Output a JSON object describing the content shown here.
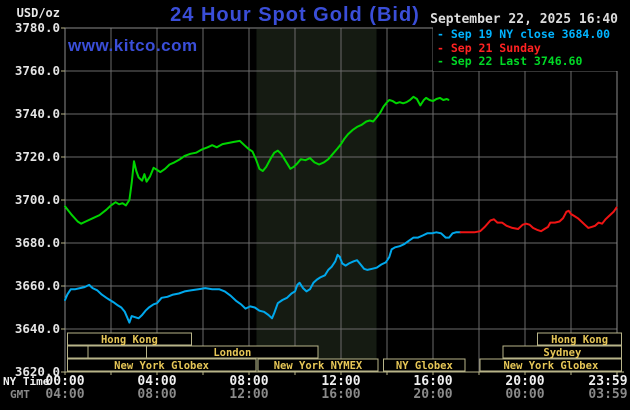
{
  "header": {
    "unit_label": "USD/oz",
    "title": "24 Hour Spot Gold (Bid)",
    "date": "September 22, 2025 16:40"
  },
  "watermark": {
    "text": "www.kitco.com"
  },
  "legend": [
    {
      "marker": "-",
      "label": "Sep 19 NY close 3684.00",
      "color": "#00b4ff"
    },
    {
      "marker": "-",
      "label": "Sep 21 Sunday",
      "color": "#ff2222"
    },
    {
      "marker": "-",
      "label": "Sep 22 Last 3746.60",
      "color": "#00d926"
    }
  ],
  "colors": {
    "background": "#000000",
    "title_blue": "#3a4ed8",
    "grid": "#6a6a6a",
    "border": "#8a8a8a",
    "axis_tan": "#b8b489",
    "session_gold": "#e7c757",
    "band": "#151b12"
  },
  "chart_data": {
    "type": "line",
    "title": "24 Hour Spot Gold (Bid)",
    "ylabel": "USD/oz",
    "ylim": [
      3620,
      3780
    ],
    "xlim_hours": [
      0,
      24
    ],
    "grid": {
      "x_step_hours": 2,
      "y_step": 20,
      "on": true
    },
    "legend_position": "top-right",
    "y_ticks": {
      "values": [
        3780,
        3760,
        3740,
        3720,
        3700,
        3680,
        3660,
        3640,
        3620
      ],
      "labels": [
        "3780.0",
        "3760.0",
        "3740.0",
        "3720.0",
        "3700.0",
        "3680.0",
        "3660.0",
        "3640.0",
        "3620.0"
      ]
    },
    "x_axis": {
      "ny_label": "NY Time",
      "gmt_label": "GMT",
      "tick_hours": [
        0,
        4,
        8,
        12,
        16,
        20,
        23.98
      ],
      "ny_times": [
        "00:00",
        "04:00",
        "08:00",
        "12:00",
        "16:00",
        "20:00",
        "23:59"
      ],
      "gmt_times": [
        "04:00",
        "08:00",
        "12:00",
        "16:00",
        "20:00",
        "00:00",
        "03:59"
      ]
    },
    "highlight_band_hours": {
      "from": 8.33,
      "to": 13.55
    },
    "series": [
      {
        "name": "Sep 22 Last",
        "color": "#00d400",
        "points": [
          [
            0,
            3697
          ],
          [
            0.3,
            3693
          ],
          [
            0.55,
            3690
          ],
          [
            0.7,
            3689
          ],
          [
            0.9,
            3690
          ],
          [
            1.2,
            3691.5
          ],
          [
            1.5,
            3693
          ],
          [
            1.8,
            3695.5
          ],
          [
            2,
            3697.5
          ],
          [
            2.2,
            3699
          ],
          [
            2.35,
            3698
          ],
          [
            2.5,
            3698.5
          ],
          [
            2.65,
            3697.5
          ],
          [
            2.8,
            3700
          ],
          [
            2.9,
            3708
          ],
          [
            3,
            3718
          ],
          [
            3.1,
            3713.5
          ],
          [
            3.2,
            3710.5
          ],
          [
            3.35,
            3709
          ],
          [
            3.45,
            3712
          ],
          [
            3.55,
            3708.5
          ],
          [
            3.7,
            3711
          ],
          [
            3.85,
            3715
          ],
          [
            4,
            3714
          ],
          [
            4.15,
            3713
          ],
          [
            4.35,
            3714.5
          ],
          [
            4.55,
            3716.5
          ],
          [
            4.75,
            3717.5
          ],
          [
            5,
            3719
          ],
          [
            5.2,
            3720.5
          ],
          [
            5.45,
            3721.5
          ],
          [
            5.7,
            3722
          ],
          [
            5.95,
            3723.5
          ],
          [
            6.2,
            3724.5
          ],
          [
            6.4,
            3725.5
          ],
          [
            6.6,
            3724.5
          ],
          [
            6.85,
            3726
          ],
          [
            7.1,
            3726.5
          ],
          [
            7.35,
            3727
          ],
          [
            7.6,
            3727.5
          ],
          [
            7.8,
            3725.5
          ],
          [
            7.95,
            3724
          ],
          [
            8.15,
            3722.5
          ],
          [
            8.3,
            3719
          ],
          [
            8.45,
            3714.5
          ],
          [
            8.6,
            3713.5
          ],
          [
            8.75,
            3715.5
          ],
          [
            8.95,
            3719.5
          ],
          [
            9.1,
            3722
          ],
          [
            9.25,
            3723
          ],
          [
            9.4,
            3721.5
          ],
          [
            9.6,
            3718
          ],
          [
            9.8,
            3714.5
          ],
          [
            9.95,
            3715.5
          ],
          [
            10.1,
            3717
          ],
          [
            10.25,
            3719
          ],
          [
            10.45,
            3718.5
          ],
          [
            10.65,
            3719.5
          ],
          [
            10.85,
            3717.5
          ],
          [
            11.05,
            3716.5
          ],
          [
            11.25,
            3717.5
          ],
          [
            11.45,
            3719
          ],
          [
            11.65,
            3721.5
          ],
          [
            11.85,
            3724
          ],
          [
            12,
            3726
          ],
          [
            12.15,
            3728.5
          ],
          [
            12.3,
            3730.5
          ],
          [
            12.5,
            3732.5
          ],
          [
            12.7,
            3734
          ],
          [
            12.9,
            3735
          ],
          [
            13.1,
            3736.5
          ],
          [
            13.25,
            3737
          ],
          [
            13.4,
            3736.5
          ],
          [
            13.55,
            3738.5
          ],
          [
            13.7,
            3740.5
          ],
          [
            13.85,
            3743.5
          ],
          [
            14,
            3745.5
          ],
          [
            14.1,
            3746.5
          ],
          [
            14.25,
            3746
          ],
          [
            14.4,
            3745
          ],
          [
            14.55,
            3745.5
          ],
          [
            14.7,
            3745
          ],
          [
            14.85,
            3745.5
          ],
          [
            15,
            3746.5
          ],
          [
            15.15,
            3748
          ],
          [
            15.3,
            3747
          ],
          [
            15.45,
            3744
          ],
          [
            15.6,
            3746.5
          ],
          [
            15.7,
            3747.5
          ],
          [
            15.85,
            3746.5
          ],
          [
            16,
            3746
          ],
          [
            16.15,
            3747
          ],
          [
            16.3,
            3747.5
          ],
          [
            16.45,
            3746.5
          ],
          [
            16.6,
            3747
          ],
          [
            16.67,
            3746.6
          ]
        ]
      },
      {
        "name": "Sep 19 NY close",
        "color": "#00a8ec",
        "points": [
          [
            0,
            3653.5
          ],
          [
            0.1,
            3656
          ],
          [
            0.25,
            3658.5
          ],
          [
            0.45,
            3658.5
          ],
          [
            0.65,
            3659
          ],
          [
            0.85,
            3659.5
          ],
          [
            1.05,
            3660.5
          ],
          [
            1.2,
            3659
          ],
          [
            1.4,
            3658
          ],
          [
            1.6,
            3656
          ],
          [
            1.8,
            3654.5
          ],
          [
            1.95,
            3653.5
          ],
          [
            2.1,
            3652.5
          ],
          [
            2.3,
            3651
          ],
          [
            2.45,
            3650
          ],
          [
            2.6,
            3648
          ],
          [
            2.7,
            3645.5
          ],
          [
            2.8,
            3643
          ],
          [
            2.9,
            3646
          ],
          [
            3.05,
            3645.5
          ],
          [
            3.2,
            3645
          ],
          [
            3.35,
            3646.5
          ],
          [
            3.5,
            3648.5
          ],
          [
            3.65,
            3650
          ],
          [
            3.85,
            3651.5
          ],
          [
            4,
            3652
          ],
          [
            4.2,
            3654.5
          ],
          [
            4.45,
            3655
          ],
          [
            4.7,
            3656
          ],
          [
            4.95,
            3656.5
          ],
          [
            5.2,
            3657.5
          ],
          [
            5.5,
            3658
          ],
          [
            5.8,
            3658.5
          ],
          [
            6.1,
            3659
          ],
          [
            6.4,
            3658.5
          ],
          [
            6.7,
            3658.5
          ],
          [
            6.95,
            3657.5
          ],
          [
            7.2,
            3655.5
          ],
          [
            7.45,
            3653
          ],
          [
            7.65,
            3651.5
          ],
          [
            7.85,
            3649.5
          ],
          [
            8.05,
            3650.5
          ],
          [
            8.25,
            3650
          ],
          [
            8.45,
            3648.5
          ],
          [
            8.65,
            3648
          ],
          [
            8.85,
            3646.5
          ],
          [
            9,
            3645
          ],
          [
            9.1,
            3647.5
          ],
          [
            9.25,
            3652
          ],
          [
            9.45,
            3653.5
          ],
          [
            9.65,
            3654.5
          ],
          [
            9.85,
            3656.5
          ],
          [
            10,
            3657.5
          ],
          [
            10.1,
            3660.5
          ],
          [
            10.2,
            3661.5
          ],
          [
            10.35,
            3659
          ],
          [
            10.5,
            3657.5
          ],
          [
            10.65,
            3658.5
          ],
          [
            10.8,
            3661.5
          ],
          [
            10.95,
            3663
          ],
          [
            11.1,
            3664
          ],
          [
            11.3,
            3665
          ],
          [
            11.45,
            3667.5
          ],
          [
            11.6,
            3669
          ],
          [
            11.75,
            3671.5
          ],
          [
            11.85,
            3674.5
          ],
          [
            11.95,
            3673.5
          ],
          [
            12.05,
            3670.5
          ],
          [
            12.2,
            3669.5
          ],
          [
            12.35,
            3670.5
          ],
          [
            12.55,
            3671.5
          ],
          [
            12.7,
            3672
          ],
          [
            12.85,
            3670
          ],
          [
            13,
            3668
          ],
          [
            13.15,
            3667.5
          ],
          [
            13.35,
            3668
          ],
          [
            13.55,
            3668.5
          ],
          [
            13.75,
            3670
          ],
          [
            13.95,
            3671
          ],
          [
            14.1,
            3673.5
          ],
          [
            14.2,
            3677
          ],
          [
            14.35,
            3678
          ],
          [
            14.55,
            3678.5
          ],
          [
            14.75,
            3679.5
          ],
          [
            14.95,
            3681
          ],
          [
            15.15,
            3682.5
          ],
          [
            15.35,
            3682.5
          ],
          [
            15.55,
            3683.5
          ],
          [
            15.75,
            3684.5
          ],
          [
            15.95,
            3684.5
          ],
          [
            16.15,
            3685
          ],
          [
            16.35,
            3684.5
          ],
          [
            16.55,
            3682.5
          ],
          [
            16.7,
            3682.5
          ],
          [
            16.85,
            3684.5
          ],
          [
            17,
            3685
          ],
          [
            17.2,
            3685
          ]
        ]
      },
      {
        "name": "Sep 21 Sunday",
        "color": "#f01414",
        "points": [
          [
            17.2,
            3685
          ],
          [
            17.5,
            3685
          ],
          [
            17.8,
            3685
          ],
          [
            18.05,
            3685.5
          ],
          [
            18.25,
            3687.5
          ],
          [
            18.5,
            3690.5
          ],
          [
            18.65,
            3691
          ],
          [
            18.8,
            3689.5
          ],
          [
            19,
            3689.5
          ],
          [
            19.2,
            3688
          ],
          [
            19.45,
            3687
          ],
          [
            19.7,
            3686.5
          ],
          [
            19.9,
            3688.5
          ],
          [
            20.05,
            3689
          ],
          [
            20.2,
            3688.5
          ],
          [
            20.35,
            3687
          ],
          [
            20.55,
            3686
          ],
          [
            20.7,
            3685.5
          ],
          [
            20.85,
            3686.5
          ],
          [
            21,
            3687.5
          ],
          [
            21.1,
            3689.5
          ],
          [
            21.3,
            3689.5
          ],
          [
            21.5,
            3690
          ],
          [
            21.65,
            3691.5
          ],
          [
            21.8,
            3694.5
          ],
          [
            21.9,
            3695
          ],
          [
            22,
            3693.5
          ],
          [
            22.15,
            3692.5
          ],
          [
            22.3,
            3691.5
          ],
          [
            22.45,
            3690
          ],
          [
            22.6,
            3688.5
          ],
          [
            22.75,
            3687
          ],
          [
            22.9,
            3687.5
          ],
          [
            23.05,
            3688
          ],
          [
            23.2,
            3689.5
          ],
          [
            23.35,
            3689
          ],
          [
            23.5,
            3691
          ],
          [
            23.65,
            3692.5
          ],
          [
            23.85,
            3694.5
          ],
          [
            23.98,
            3696.5
          ]
        ]
      }
    ],
    "sessions": [
      {
        "row": 0,
        "from": 0.1,
        "to": 5.5,
        "label": "Hong Kong"
      },
      {
        "row": 0,
        "from": 20.55,
        "to": 24.2,
        "label": "Hong Kong"
      },
      {
        "row": 1,
        "from": 0.1,
        "to": 1.0,
        "label": ""
      },
      {
        "row": 1,
        "from": 1.0,
        "to": 3.55,
        "label": ""
      },
      {
        "row": 1,
        "from": 3.55,
        "to": 11.0,
        "label": "London"
      },
      {
        "row": 1,
        "from": 19.05,
        "to": 24.2,
        "label": "Sydney"
      },
      {
        "row": 2,
        "from": 0.1,
        "to": 8.3,
        "label": "New York Globex"
      },
      {
        "row": 2,
        "from": 8.4,
        "to": 13.6,
        "label": "New York NYMEX"
      },
      {
        "row": 2,
        "from": 13.85,
        "to": 17.4,
        "label": "NY Globex"
      },
      {
        "row": 2,
        "from": 18.05,
        "to": 24.2,
        "label": "New York Globex"
      }
    ]
  }
}
